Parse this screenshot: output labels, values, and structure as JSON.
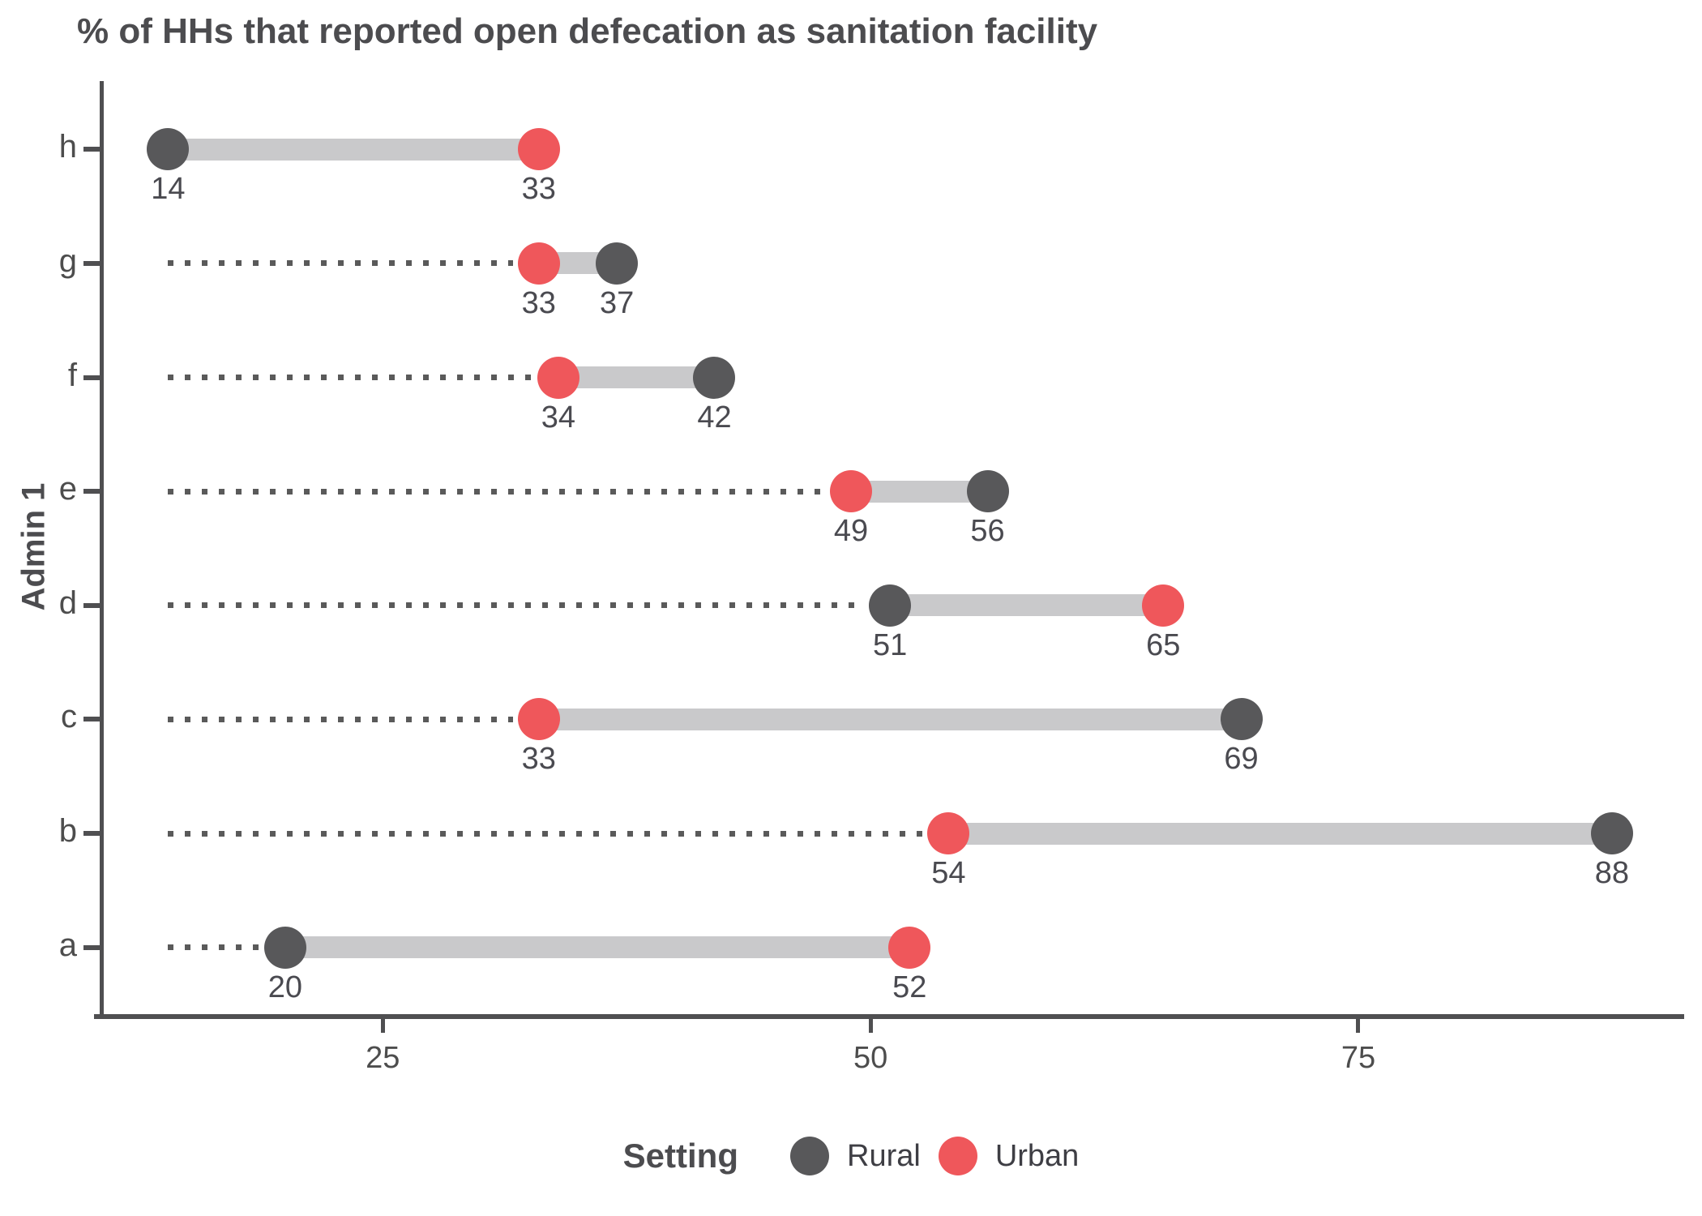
{
  "chart_data": {
    "type": "dumbbell",
    "title": "% of HHs that reported open defecation as sanitation facility",
    "xlabel": "",
    "ylabel": "Admin 1",
    "x_ticks": [
      25,
      50,
      75
    ],
    "x_domain": [
      10.66,
      91.7
    ],
    "leader_start_value": 14,
    "grid": "off",
    "legend": {
      "title": "Setting",
      "position": "bottom",
      "entries": [
        {
          "label": "Rural",
          "color": "#58585a"
        },
        {
          "label": "Urban",
          "color": "#ef575b"
        }
      ]
    },
    "colors": {
      "rural": "#58585a",
      "urban": "#ef575b",
      "band": "#c9c9cb",
      "leader": "#5a5a5a",
      "axis": "#4f4f51"
    },
    "rows_top_to_bottom": [
      {
        "category": "h",
        "rural": 14,
        "urban": 33
      },
      {
        "category": "g",
        "rural": 37,
        "urban": 33
      },
      {
        "category": "f",
        "rural": 42,
        "urban": 34
      },
      {
        "category": "e",
        "rural": 56,
        "urban": 49
      },
      {
        "category": "d",
        "rural": 51,
        "urban": 65
      },
      {
        "category": "c",
        "rural": 69,
        "urban": 33
      },
      {
        "category": "b",
        "rural": 88,
        "urban": 54
      },
      {
        "category": "a",
        "rural": 20,
        "urban": 52
      }
    ]
  }
}
